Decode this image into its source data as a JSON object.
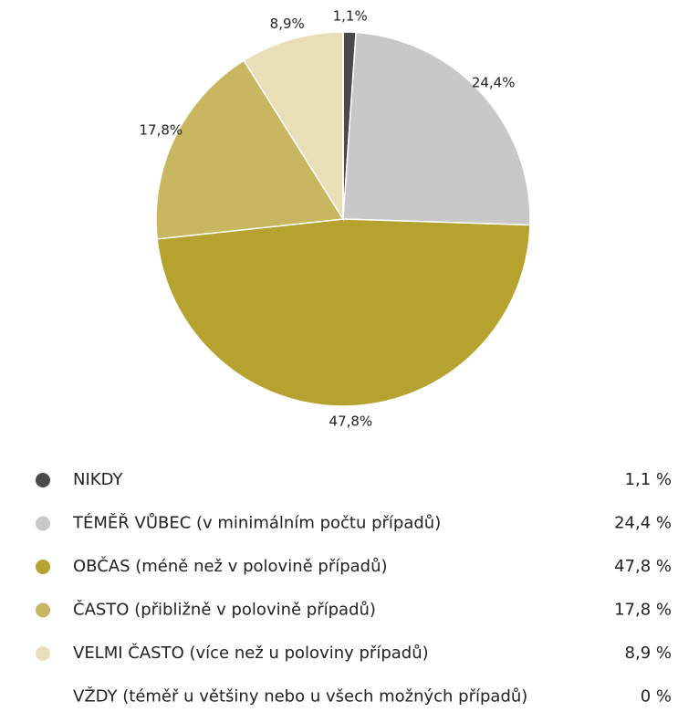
{
  "chart_data": {
    "type": "pie",
    "categories": [
      "NIKDY",
      "TÉMĚŘ VŮBEC (v minimálním počtu případů)",
      "OBČAS (méně než v polovině případů)",
      "ČASTO (přibližně v polovině případů)",
      "VELMI ČASTO (více než u poloviny případů)",
      "VŽDY (téměř u většiny nebo u všech možných případů)"
    ],
    "values": [
      1.1,
      24.4,
      47.8,
      17.8,
      8.9,
      0
    ],
    "value_labels": [
      "1,1%",
      "24,4%",
      "47,8%",
      "17,8%",
      "8,9%",
      null
    ],
    "legend_value_labels": [
      "1,1 %",
      "24,4 %",
      "47,8 %",
      "17,8 %",
      "8,9 %",
      "0 %"
    ],
    "colors": [
      "#4a4a4a",
      "#c8c8c8",
      "#b5a22f",
      "#c8b760",
      "#e8dfb6",
      "#ffffff"
    ]
  }
}
